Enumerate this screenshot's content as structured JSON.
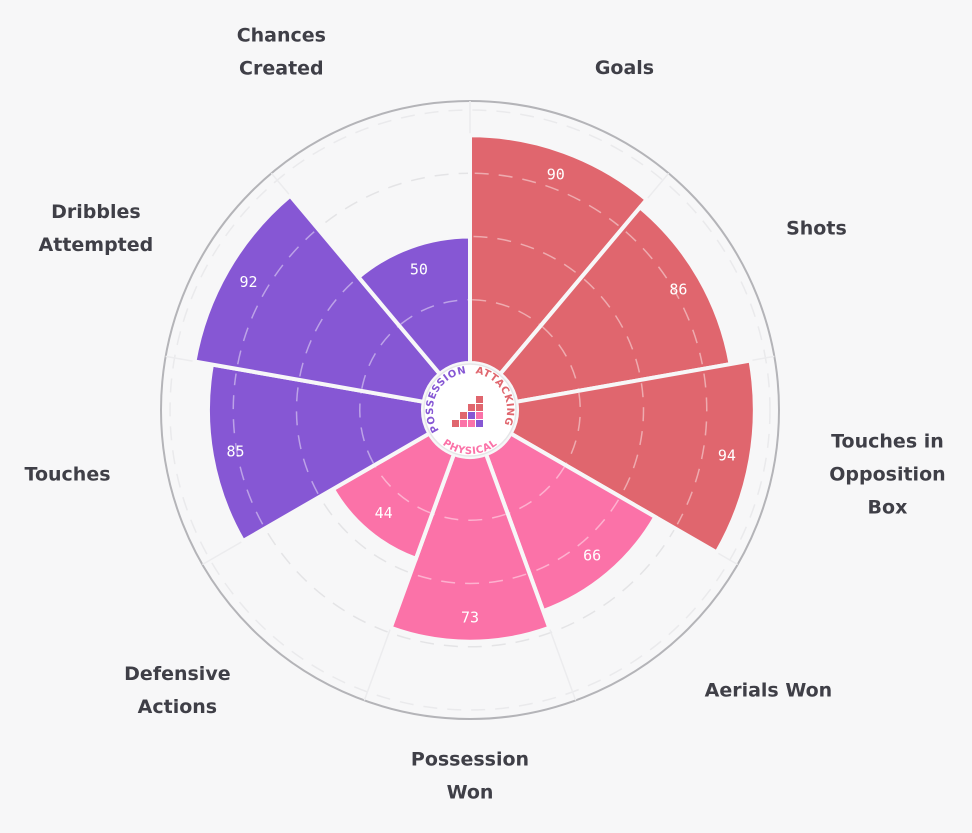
{
  "chart_data": {
    "type": "polar-bar",
    "title": "",
    "rmax": 100,
    "groups": [
      {
        "name": "ATTACKING",
        "color": "#e0666e"
      },
      {
        "name": "PHYSICAL",
        "color": "#fb72a8"
      },
      {
        "name": "POSSESSION",
        "color": "#8657d4"
      }
    ],
    "categories": [
      {
        "name": "Goals",
        "value": 90,
        "group": "ATTACKING",
        "label_lines": [
          "Goals"
        ]
      },
      {
        "name": "Shots",
        "value": 86,
        "group": "ATTACKING",
        "label_lines": [
          "Shots"
        ]
      },
      {
        "name": "Touches in Opposition Box",
        "value": 94,
        "group": "ATTACKING",
        "label_lines": [
          "Touches in",
          "Opposition",
          "Box"
        ]
      },
      {
        "name": "Aerials Won",
        "value": 66,
        "group": "PHYSICAL",
        "label_lines": [
          "Aerials Won"
        ]
      },
      {
        "name": "Possession Won",
        "value": 73,
        "group": "PHYSICAL",
        "label_lines": [
          "Possession",
          "Won"
        ]
      },
      {
        "name": "Defensive Actions",
        "value": 44,
        "group": "PHYSICAL",
        "label_lines": [
          "Defensive",
          "Actions"
        ]
      },
      {
        "name": "Touches",
        "value": 85,
        "group": "POSSESSION",
        "label_lines": [
          "Touches"
        ]
      },
      {
        "name": "Dribbles Attempted",
        "value": 92,
        "group": "POSSESSION",
        "label_lines": [
          "Dribbles",
          "Attempted"
        ]
      },
      {
        "name": "Chances Created",
        "value": 50,
        "group": "POSSESSION",
        "label_lines": [
          "Chances",
          "Created"
        ]
      }
    ],
    "gridlines": [
      25,
      50,
      75
    ]
  }
}
